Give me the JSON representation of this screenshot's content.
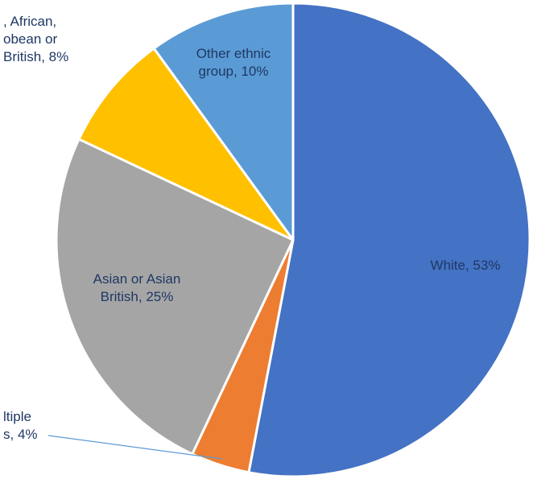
{
  "chart_data": {
    "type": "pie",
    "start_angle_deg": 0,
    "direction": "clockwise",
    "slices": [
      {
        "name": "White",
        "value": 53,
        "color": "#4472c4",
        "label_lines": [
          "White, 53%"
        ]
      },
      {
        "name": "Mixed/Multiple ethnic groups",
        "value": 4,
        "color": "#ed7d31",
        "label_lines": [
          "ltiple",
          "s, 4%"
        ]
      },
      {
        "name": "Asian or Asian British",
        "value": 25,
        "color": "#a5a5a5",
        "label_lines": [
          "Asian or Asian",
          "British, 25%"
        ]
      },
      {
        "name": "Black, African, Caribbean or Black British",
        "value": 8,
        "color": "#ffc000",
        "label_lines": [
          ", African,",
          "obean or",
          "British, 8%"
        ]
      },
      {
        "name": "Other ethnic group",
        "value": 10,
        "color": "#5b9bd5",
        "label_lines": [
          "Other ethnic",
          "group, 10%"
        ]
      }
    ],
    "data_labels": "category name and percentage",
    "legend": "none"
  }
}
